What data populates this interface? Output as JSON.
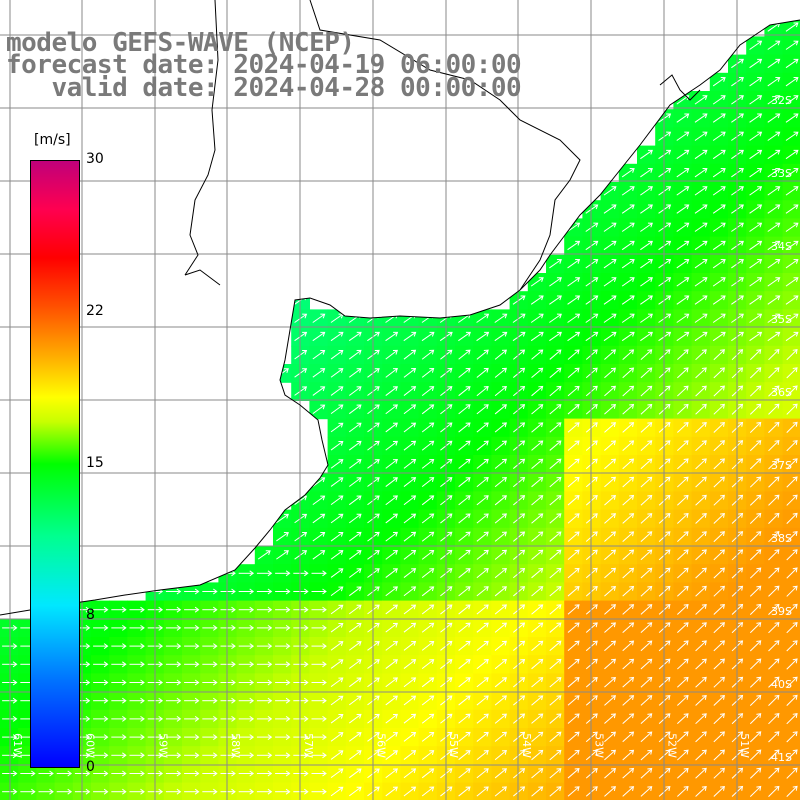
{
  "title": {
    "line1": "modelo GEFS-WAVE (NCEP)",
    "line2": "forecast date: 2024-04-19 06:00:00",
    "line3": "   valid date: 2024-04-28 00:00:00"
  },
  "legend": {
    "unit": "[m/s]",
    "ticks": [
      "30",
      "22",
      "15",
      "8",
      "0"
    ],
    "colors": [
      "#0000ff",
      "#00e8ff",
      "#00ff00",
      "#ffff00",
      "#ff0000",
      "#c0007a"
    ]
  },
  "axes": {
    "lat_labels": [
      "32S",
      "33S",
      "34S",
      "35S",
      "36S",
      "37S",
      "38S",
      "39S",
      "40S",
      "41S"
    ],
    "lon_labels": [
      "61W",
      "60W",
      "59W",
      "58W",
      "57W",
      "56W",
      "55W",
      "54W",
      "53W",
      "52W",
      "51W"
    ]
  },
  "field": {
    "quantity": "wind speed",
    "units": "m/s",
    "range": [
      0,
      30
    ],
    "land_color": "#ffffff",
    "coast_color": "#000000",
    "grid_color": "#8a8a8a"
  }
}
